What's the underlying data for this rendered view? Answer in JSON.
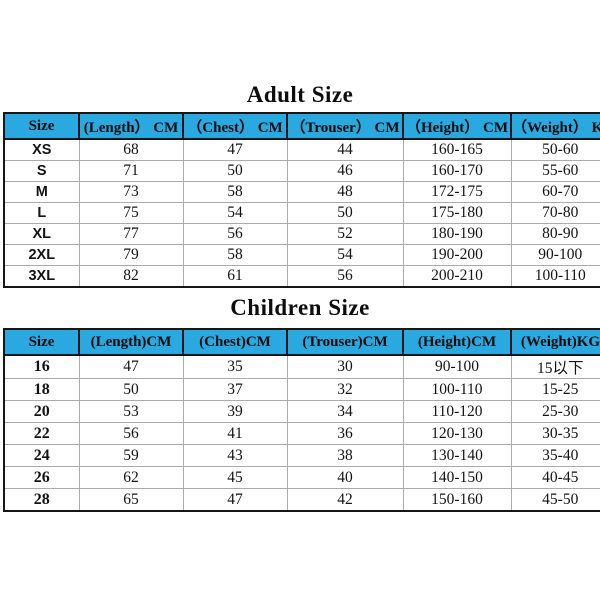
{
  "colors": {
    "page_bg": "#FFFFFF",
    "header_bg": "#29A9E0",
    "outer_border": "#161616",
    "grid_line": "#ABABAB",
    "text": "#131313"
  },
  "chart_data": [
    {
      "type": "table",
      "title": "Adult Size",
      "columns": [
        "Size",
        "(Length） CM",
        "（Chest） CM",
        "（Trouser） CM",
        "（Height） CM",
        "（Weight） KG"
      ],
      "rows": [
        [
          "XS",
          "68",
          "47",
          "44",
          "160-165",
          "50-60"
        ],
        [
          "S",
          "71",
          "50",
          "46",
          "160-170",
          "55-60"
        ],
        [
          "M",
          "73",
          "58",
          "48",
          "172-175",
          "60-70"
        ],
        [
          "L",
          "75",
          "54",
          "50",
          "175-180",
          "70-80"
        ],
        [
          "XL",
          "77",
          "56",
          "52",
          "180-190",
          "80-90"
        ],
        [
          "2XL",
          "79",
          "58",
          "54",
          "190-200",
          "90-100"
        ],
        [
          "3XL",
          "82",
          "61",
          "56",
          "200-210",
          "100-110"
        ]
      ]
    },
    {
      "type": "table",
      "title": "Children Size",
      "columns": [
        "Size",
        "(Length)CM",
        "(Chest)CM",
        "(Trouser)CM",
        "(Height)CM",
        "(Weight)KG"
      ],
      "rows": [
        [
          "16",
          "47",
          "35",
          "30",
          "90-100",
          "15以下"
        ],
        [
          "18",
          "50",
          "37",
          "32",
          "100-110",
          "15-25"
        ],
        [
          "20",
          "53",
          "39",
          "34",
          "110-120",
          "25-30"
        ],
        [
          "22",
          "56",
          "41",
          "36",
          "120-130",
          "30-35"
        ],
        [
          "24",
          "59",
          "43",
          "38",
          "130-140",
          "35-40"
        ],
        [
          "26",
          "62",
          "45",
          "40",
          "140-150",
          "40-45"
        ],
        [
          "28",
          "65",
          "47",
          "42",
          "150-160",
          "45-50"
        ]
      ]
    }
  ]
}
